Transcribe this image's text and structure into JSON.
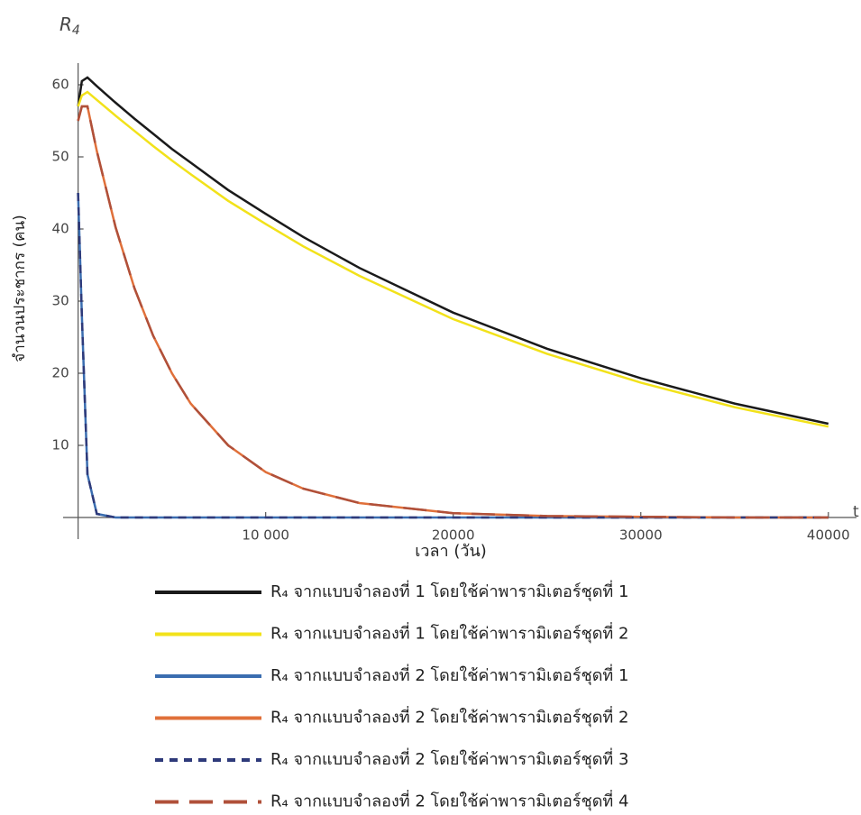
{
  "chart_data": {
    "type": "line",
    "y_symbol": "R",
    "y_symbol_subscript": "4",
    "x_symbol": "t",
    "x_label": "เวลา (วัน)",
    "y_label": "จำนวนประชากร (คน)",
    "xlim": [
      -800,
      41500
    ],
    "ylim": [
      -3,
      63
    ],
    "xticks": [
      {
        "value": 10000,
        "label": "10 000"
      },
      20000,
      30000,
      40000
    ],
    "yticks": [
      10,
      20,
      30,
      40,
      50,
      60
    ],
    "x": [
      0,
      200,
      500,
      1000,
      2000,
      3000,
      4000,
      5000,
      6000,
      8000,
      10000,
      12000,
      15000,
      20000,
      25000,
      30000,
      35000,
      40000
    ],
    "series": [
      {
        "name": "R₄ จากแบบจำลองที่ 1 โดยใช้ค่าพารามิเตอร์ชุดที่ 1",
        "color": "#1a1a1a",
        "dash": "solid",
        "values": [
          57,
          60.5,
          61,
          59.8,
          57.5,
          55.3,
          53.2,
          51.1,
          49.2,
          45.4,
          42.1,
          38.9,
          34.6,
          28.4,
          23.4,
          19.3,
          15.8,
          13.0
        ]
      },
      {
        "name": "R₄ จากแบบจำลองที่ 1 โดยใช้ค่าพารามิเตอร์ชุดที่ 2",
        "color": "#f2e21a",
        "dash": "solid",
        "values": [
          57,
          58.5,
          59,
          57.9,
          55.7,
          53.6,
          51.5,
          49.5,
          47.6,
          43.9,
          40.7,
          37.6,
          33.5,
          27.5,
          22.7,
          18.7,
          15.3,
          12.6
        ]
      },
      {
        "name": "R₄ จากแบบจำลองที่ 2 โดยใช้ค่าพารามิเตอร์ชุดที่ 1",
        "color": "#3a6db0",
        "dash": "solid",
        "values": [
          45,
          28,
          6,
          0.5,
          0,
          0,
          0,
          0,
          0,
          0,
          0,
          0,
          0,
          0,
          0,
          0,
          0,
          0
        ]
      },
      {
        "name": "R₄ จากแบบจำลองที่ 2 โดยใช้ค่าพารามิเตอร์ชุดที่ 2",
        "color": "#e0703a",
        "dash": "solid",
        "values": [
          55,
          57,
          57,
          50.8,
          40.2,
          31.8,
          25.2,
          20.0,
          15.8,
          10.0,
          6.3,
          4.0,
          2.0,
          0.6,
          0.2,
          0.1,
          0,
          0
        ]
      },
      {
        "name": "R₄ จากแบบจำลองที่ 2 โดยใช้ค่าพารามิเตอร์ชุดที่ 3",
        "color": "#2e3a7a",
        "dash": "dashed",
        "values": [
          45,
          28,
          6,
          0.5,
          0,
          0,
          0,
          0,
          0,
          0,
          0,
          0,
          0,
          0,
          0,
          0,
          0,
          0
        ]
      },
      {
        "name": "R₄ จากแบบจำลองที่ 2 โดยใช้ค่าพารามิเตอร์ชุดที่ 4",
        "color": "#b0503a",
        "dash": "long-dashed",
        "values": [
          55,
          57,
          57,
          50.8,
          40.2,
          31.8,
          25.2,
          20.0,
          15.8,
          10.0,
          6.3,
          4.0,
          2.0,
          0.6,
          0.2,
          0.1,
          0,
          0
        ]
      }
    ]
  }
}
